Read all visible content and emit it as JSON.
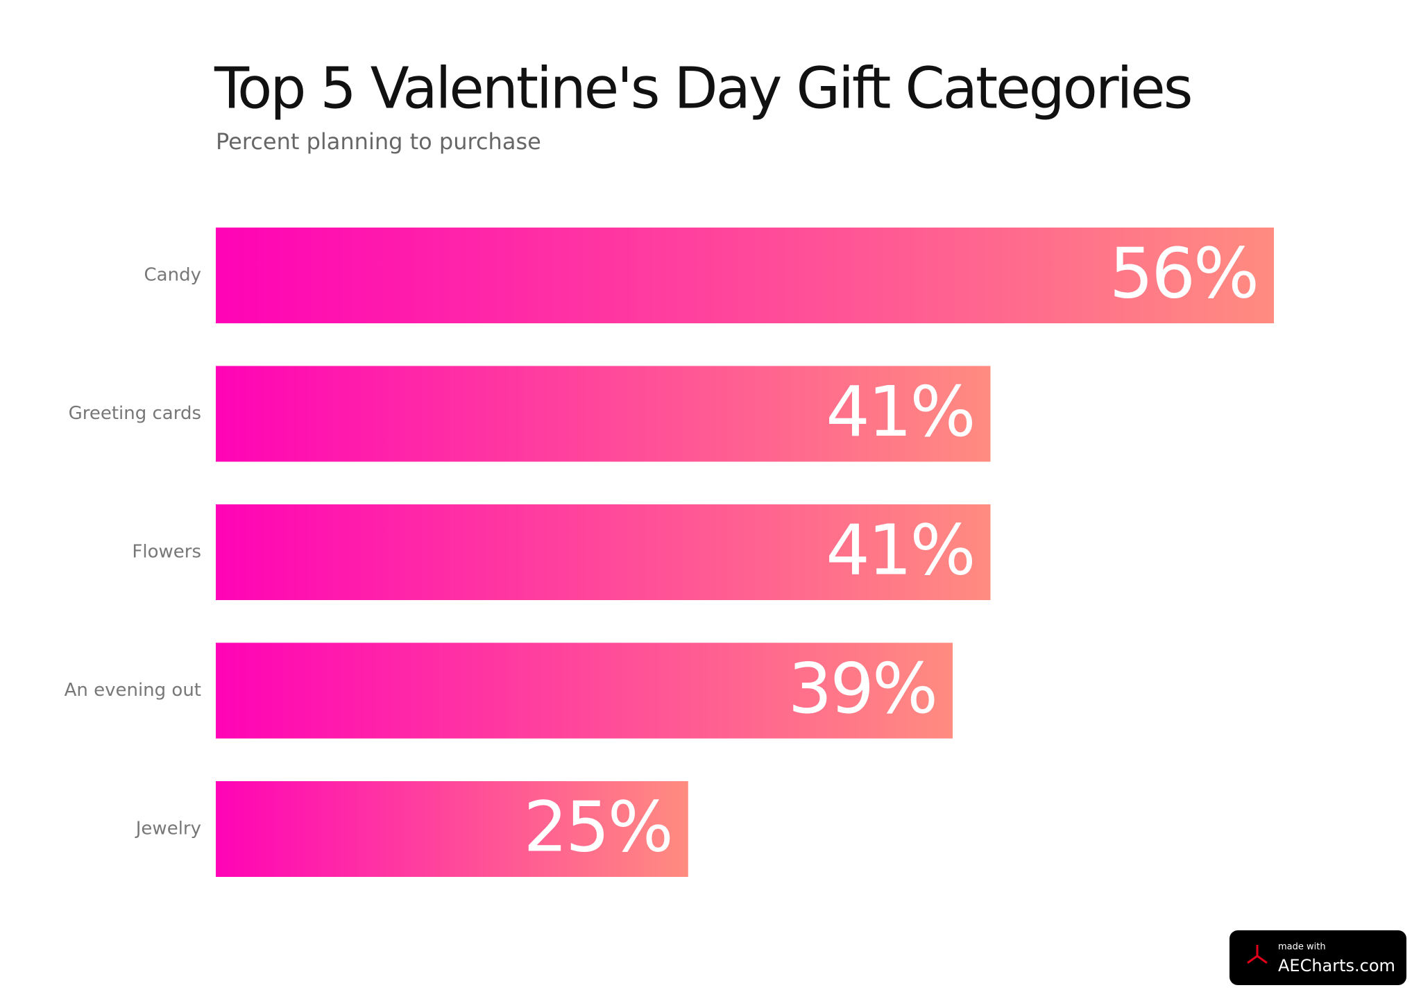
{
  "chart_data": {
    "type": "bar",
    "orientation": "horizontal",
    "title": "Top 5 Valentine's Day Gift Categories",
    "subtitle": "Percent planning to purchase",
    "categories": [
      "Candy",
      "Greeting cards",
      "Flowers",
      "An evening out",
      "Jewelry"
    ],
    "values": [
      56,
      41,
      41,
      39,
      25
    ],
    "value_labels": [
      "56%",
      "41%",
      "41%",
      "39%",
      "25%"
    ],
    "gradient": [
      "#ff03b6",
      "#ff8c80"
    ]
  },
  "watermark": {
    "small": "made with",
    "site": "AECharts.com"
  }
}
